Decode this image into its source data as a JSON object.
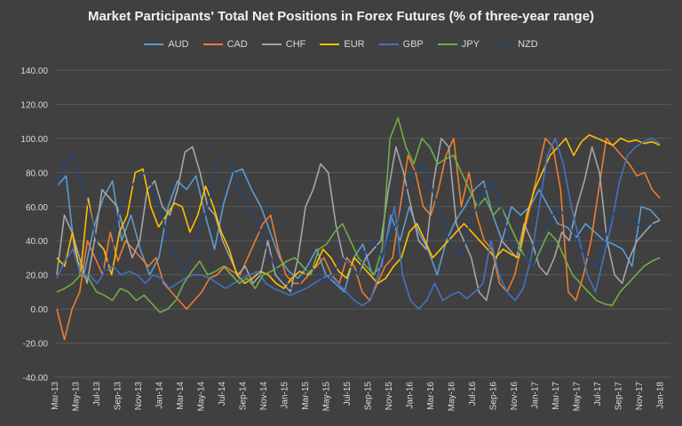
{
  "chart_data": {
    "type": "line",
    "title": "Market Participants' Total Net Positions in Forex Futures (% of three-year range)",
    "xlabel": "",
    "ylabel": "",
    "ylim": [
      -40,
      140
    ],
    "y_ticks": [
      "-40.00",
      "-20.00",
      "0.00",
      "20.00",
      "40.00",
      "60.00",
      "80.00",
      "100.00",
      "120.00",
      "140.00"
    ],
    "x_ticks": [
      "Mar-13",
      "May-13",
      "Jul-13",
      "Sep-13",
      "Nov-13",
      "Jan-14",
      "Mar-14",
      "May-14",
      "Jul-14",
      "Sep-14",
      "Nov-14",
      "Jan-15",
      "Mar-15",
      "May-15",
      "Jul-15",
      "Sep-15",
      "Nov-15",
      "Jan-16",
      "Mar-16",
      "May-16",
      "Jul-16",
      "Sep-16",
      "Nov-16",
      "Jan-17",
      "Mar-17",
      "May-17",
      "Jul-17",
      "Sep-17",
      "Nov-17",
      "Jan-18"
    ],
    "grid": true,
    "legend_position": "top",
    "series": [
      {
        "name": "AUD",
        "color": "#5b9bd5",
        "values": [
          72,
          78,
          30,
          22,
          48,
          65,
          75,
          40,
          55,
          35,
          20,
          30,
          60,
          75,
          70,
          78,
          55,
          35,
          62,
          80,
          82,
          70,
          60,
          45,
          30,
          22,
          18,
          25,
          35,
          20,
          15,
          10,
          30,
          38,
          20,
          25,
          55,
          40,
          60,
          45,
          35,
          20,
          40,
          52,
          60,
          70,
          75,
          55,
          40,
          60,
          55,
          60,
          70,
          60,
          50,
          48,
          42,
          50,
          45,
          40,
          38,
          35,
          25,
          60,
          58,
          52
        ]
      },
      {
        "name": "CAD",
        "color": "#ed7d31",
        "values": [
          0,
          -18,
          0,
          10,
          40,
          30,
          20,
          45,
          28,
          40,
          35,
          30,
          25,
          30,
          15,
          10,
          5,
          0,
          5,
          10,
          18,
          20,
          25,
          22,
          20,
          30,
          40,
          50,
          55,
          35,
          20,
          15,
          15,
          20,
          25,
          30,
          20,
          15,
          30,
          25,
          10,
          5,
          15,
          25,
          30,
          60,
          90,
          80,
          60,
          55,
          70,
          90,
          100,
          60,
          80,
          55,
          40,
          35,
          15,
          10,
          20,
          40,
          60,
          80,
          100,
          95,
          70,
          10,
          5,
          20,
          40,
          70,
          100,
          95,
          90,
          85,
          78,
          80,
          70,
          65
        ]
      },
      {
        "name": "CHF",
        "color": "#a5a5a5",
        "values": [
          20,
          55,
          45,
          30,
          15,
          40,
          70,
          65,
          60,
          45,
          30,
          40,
          70,
          75,
          60,
          55,
          70,
          92,
          95,
          80,
          60,
          55,
          40,
          30,
          20,
          25,
          15,
          20,
          40,
          20,
          15,
          10,
          30,
          60,
          70,
          85,
          80,
          50,
          30,
          25,
          20,
          30,
          35,
          40,
          70,
          95,
          80,
          60,
          40,
          35,
          75,
          100,
          95,
          50,
          40,
          30,
          10,
          5,
          25,
          40,
          35,
          30,
          50,
          40,
          25,
          20,
          30,
          45,
          40,
          60,
          75,
          95,
          80,
          40,
          20,
          15,
          30,
          40,
          45,
          50,
          52
        ]
      },
      {
        "name": "EUR",
        "color": "#ffc000",
        "values": [
          30,
          25,
          45,
          20,
          65,
          40,
          35,
          20,
          45,
          55,
          80,
          82,
          60,
          48,
          55,
          62,
          60,
          45,
          55,
          72,
          60,
          45,
          35,
          20,
          15,
          18,
          22,
          20,
          15,
          12,
          18,
          22,
          20,
          25,
          35,
          30,
          22,
          18,
          30,
          25,
          20,
          15,
          18,
          25,
          30,
          45,
          50,
          40,
          30,
          35,
          40,
          45,
          50,
          45,
          40,
          35,
          30,
          35,
          32,
          30,
          55,
          70,
          80,
          90,
          95,
          100,
          90,
          98,
          102,
          100,
          98,
          96,
          100,
          98,
          99,
          97,
          98,
          96
        ]
      },
      {
        "name": "GBP",
        "color": "#4472c4",
        "values": [
          18,
          28,
          35,
          20,
          20,
          15,
          22,
          25,
          20,
          22,
          20,
          15,
          20,
          18,
          12,
          15,
          18,
          20,
          20,
          18,
          15,
          12,
          15,
          18,
          20,
          22,
          15,
          12,
          10,
          8,
          10,
          12,
          15,
          18,
          20,
          15,
          10,
          5,
          2,
          5,
          20,
          40,
          60,
          20,
          5,
          0,
          5,
          15,
          5,
          8,
          10,
          6,
          10,
          15,
          40,
          20,
          10,
          5,
          12,
          30,
          60,
          90,
          100,
          85,
          60,
          40,
          20,
          10,
          30,
          50,
          75,
          90,
          95,
          98,
          100,
          97
        ]
      },
      {
        "name": "JPY",
        "color": "#70ad47",
        "values": [
          10,
          12,
          15,
          20,
          18,
          10,
          8,
          5,
          12,
          10,
          5,
          8,
          3,
          -2,
          0,
          5,
          15,
          22,
          28,
          20,
          22,
          25,
          20,
          15,
          18,
          12,
          20,
          22,
          25,
          28,
          30,
          25,
          20,
          35,
          38,
          45,
          50,
          40,
          30,
          25,
          20,
          35,
          100,
          112,
          95,
          85,
          100,
          95,
          85,
          88,
          90,
          80,
          70,
          60,
          65,
          55,
          60,
          50,
          40,
          30,
          25,
          35,
          45,
          40,
          30,
          20,
          15,
          10,
          5,
          3,
          2,
          10,
          15,
          20,
          25,
          28,
          30
        ]
      },
      {
        "name": "NZD",
        "color": "#264478",
        "values": [
          72,
          85,
          90,
          75,
          60,
          40,
          20,
          35,
          60,
          70,
          75,
          80,
          72,
          60,
          40,
          30,
          20,
          30,
          45,
          60,
          80,
          90,
          85,
          70,
          60,
          55,
          40,
          30,
          20,
          15,
          10,
          18,
          25,
          20,
          15,
          22,
          30,
          25,
          20,
          35,
          40,
          30,
          45,
          50,
          70,
          80,
          85,
          75,
          60,
          45,
          35,
          30,
          50,
          60,
          70,
          75,
          60,
          40,
          35,
          30,
          25,
          40,
          50,
          60,
          55,
          45,
          35,
          30,
          25,
          40,
          55,
          60,
          55,
          50,
          48,
          50,
          45
        ]
      }
    ]
  }
}
